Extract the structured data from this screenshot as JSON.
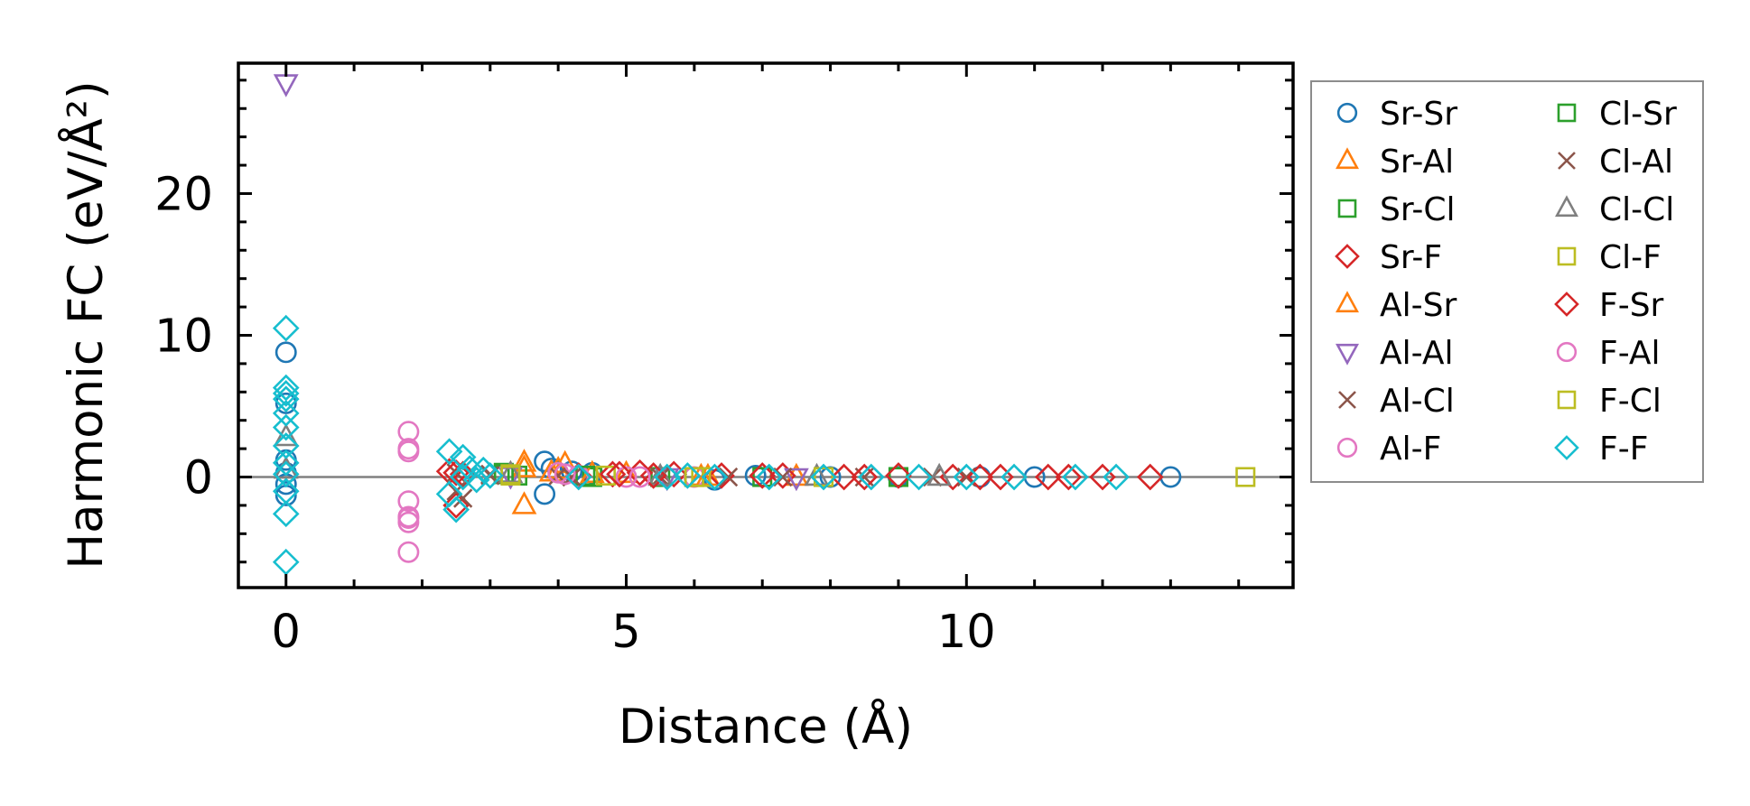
{
  "chart_data": {
    "type": "scatter",
    "title": "",
    "xlabel": "Distance (Å)",
    "ylabel": "Harmonic FC (eV/Å²)",
    "xlim": [
      -0.7,
      14.8
    ],
    "ylim": [
      -7.8,
      29.2
    ],
    "xticks": [
      0,
      5,
      10
    ],
    "yticks": [
      0,
      10,
      20
    ],
    "grid": false,
    "reference_line_y": 0,
    "legend_position": "outside-right",
    "series": [
      {
        "name": "Sr-Sr",
        "marker": "circle",
        "color": "#1f77b4",
        "points": [
          [
            0,
            8.8
          ],
          [
            0,
            5.2
          ],
          [
            0,
            1.2
          ],
          [
            0,
            0.3
          ],
          [
            0,
            -0.5
          ],
          [
            0,
            -1.3
          ],
          [
            3.8,
            1.1
          ],
          [
            3.8,
            -1.2
          ],
          [
            3.9,
            0.6
          ],
          [
            4.2,
            0.4
          ],
          [
            4.5,
            0.3
          ],
          [
            6.3,
            -0.2
          ],
          [
            6.9,
            0.1
          ],
          [
            8.0,
            0.0
          ],
          [
            9.0,
            0.0
          ],
          [
            10.2,
            0.0
          ],
          [
            11.0,
            0.0
          ],
          [
            13.0,
            0.0
          ]
        ]
      },
      {
        "name": "Sr-Al",
        "marker": "triangle-up",
        "color": "#ff7f0e",
        "points": [
          [
            3.5,
            -2.0
          ],
          [
            3.5,
            1.0
          ],
          [
            4.0,
            0.5
          ],
          [
            4.1,
            0.9
          ],
          [
            5.0,
            0.2
          ],
          [
            6.2,
            0.0
          ],
          [
            7.5,
            0.0
          ]
        ]
      },
      {
        "name": "Sr-Cl",
        "marker": "square",
        "color": "#2ca02c",
        "points": [
          [
            3.2,
            0.3
          ],
          [
            3.4,
            0.1
          ],
          [
            4.5,
            0.0
          ],
          [
            5.5,
            0.0
          ],
          [
            7.0,
            0.0
          ],
          [
            9.0,
            0.0
          ]
        ]
      },
      {
        "name": "Sr-F",
        "marker": "diamond",
        "color": "#d62728",
        "points": [
          [
            2.4,
            0.4
          ],
          [
            2.5,
            -2.0
          ],
          [
            2.6,
            0.2
          ],
          [
            4.3,
            0.1
          ],
          [
            4.8,
            0.2
          ],
          [
            5.2,
            0.3
          ],
          [
            5.7,
            0.2
          ],
          [
            6.4,
            0.1
          ],
          [
            7.3,
            0.1
          ],
          [
            8.2,
            0.0
          ],
          [
            9.0,
            0.1
          ],
          [
            9.8,
            0.0
          ],
          [
            10.5,
            0.0
          ],
          [
            11.2,
            0.0
          ],
          [
            12.0,
            0.0
          ],
          [
            12.7,
            0.0
          ]
        ]
      },
      {
        "name": "Al-Sr",
        "marker": "triangle-up",
        "color": "#ff7f0e",
        "points": [
          [
            3.5,
            0.6
          ],
          [
            3.9,
            0.3
          ],
          [
            4.5,
            0.2
          ],
          [
            6.1,
            0.0
          ]
        ]
      },
      {
        "name": "Al-Al",
        "marker": "triangle-down",
        "color": "#9467bd",
        "points": [
          [
            0,
            27.8
          ],
          [
            3.3,
            0.1
          ],
          [
            5.6,
            0.0
          ],
          [
            7.5,
            0.0
          ]
        ]
      },
      {
        "name": "Al-Cl",
        "marker": "x",
        "color": "#8c564b",
        "points": [
          [
            2.6,
            -1.5
          ],
          [
            2.5,
            0.3
          ],
          [
            3.0,
            0.2
          ],
          [
            4.0,
            0.1
          ],
          [
            5.5,
            0.0
          ],
          [
            7.3,
            0.0
          ],
          [
            9.5,
            0.0
          ]
        ]
      },
      {
        "name": "Al-F",
        "marker": "circle",
        "color": "#e377c2",
        "points": [
          [
            1.8,
            3.2
          ],
          [
            1.8,
            1.8
          ],
          [
            1.8,
            -1.7
          ],
          [
            1.8,
            -2.8
          ],
          [
            1.8,
            -3.2
          ],
          [
            1.8,
            -5.3
          ],
          [
            4.0,
            0.3
          ],
          [
            4.3,
            0.1
          ],
          [
            5.0,
            0.0
          ],
          [
            6.0,
            0.0
          ]
        ]
      },
      {
        "name": "Cl-Sr",
        "marker": "square",
        "color": "#2ca02c",
        "points": [
          [
            3.2,
            0.2
          ],
          [
            4.4,
            0.1
          ],
          [
            6.0,
            0.0
          ]
        ]
      },
      {
        "name": "Cl-Al",
        "marker": "x",
        "color": "#8c564b",
        "points": [
          [
            2.5,
            -1.0
          ],
          [
            3.0,
            0.1
          ],
          [
            4.2,
            0.0
          ],
          [
            6.5,
            0.0
          ],
          [
            8.5,
            0.0
          ],
          [
            10.0,
            0.0
          ]
        ]
      },
      {
        "name": "Cl-Cl",
        "marker": "triangle-up",
        "color": "#7f7f7f",
        "points": [
          [
            0,
            2.8
          ],
          [
            0,
            0.5
          ],
          [
            3.3,
            0.2
          ],
          [
            5.5,
            0.0
          ],
          [
            7.8,
            0.0
          ],
          [
            9.6,
            0.0
          ]
        ]
      },
      {
        "name": "Cl-F",
        "marker": "square",
        "color": "#bcbd22",
        "points": [
          [
            3.3,
            0.1
          ],
          [
            4.7,
            0.1
          ],
          [
            6.1,
            0.0
          ],
          [
            7.9,
            0.0
          ]
        ]
      },
      {
        "name": "F-Sr",
        "marker": "diamond",
        "color": "#d62728",
        "points": [
          [
            2.5,
            0.3
          ],
          [
            4.9,
            0.2
          ],
          [
            5.4,
            0.1
          ],
          [
            7.0,
            0.1
          ],
          [
            8.5,
            0.0
          ],
          [
            10.2,
            0.0
          ],
          [
            11.5,
            0.0
          ]
        ]
      },
      {
        "name": "F-Al",
        "marker": "circle",
        "color": "#e377c2",
        "points": [
          [
            1.8,
            2.0
          ],
          [
            1.8,
            -2.9
          ],
          [
            4.1,
            0.2
          ],
          [
            5.2,
            0.0
          ]
        ]
      },
      {
        "name": "F-Cl",
        "marker": "square",
        "color": "#bcbd22",
        "points": [
          [
            3.3,
            0.2
          ],
          [
            6.0,
            0.0
          ],
          [
            14.1,
            0.0
          ]
        ]
      },
      {
        "name": "F-F",
        "marker": "diamond",
        "color": "#17becf",
        "points": [
          [
            0,
            10.5
          ],
          [
            0,
            6.3
          ],
          [
            0,
            5.9
          ],
          [
            0,
            5.5
          ],
          [
            0,
            4.5
          ],
          [
            0,
            3.5
          ],
          [
            0,
            2.2
          ],
          [
            0,
            1.0
          ],
          [
            0,
            0.2
          ],
          [
            0,
            -1.0
          ],
          [
            0,
            -2.6
          ],
          [
            0,
            -6.0
          ],
          [
            2.4,
            1.8
          ],
          [
            2.4,
            -1.2
          ],
          [
            2.5,
            -2.3
          ],
          [
            2.6,
            1.4
          ],
          [
            2.6,
            0.0
          ],
          [
            2.7,
            0.6
          ],
          [
            2.8,
            -0.2
          ],
          [
            2.9,
            0.5
          ],
          [
            3.0,
            0.1
          ],
          [
            4.3,
            0.0
          ],
          [
            5.6,
            0.0
          ],
          [
            5.9,
            0.1
          ],
          [
            6.3,
            0.0
          ],
          [
            7.1,
            0.0
          ],
          [
            7.9,
            0.0
          ],
          [
            8.6,
            0.0
          ],
          [
            9.3,
            0.0
          ],
          [
            10.0,
            0.0
          ],
          [
            10.7,
            0.0
          ],
          [
            11.6,
            0.0
          ],
          [
            12.2,
            0.0
          ]
        ]
      }
    ]
  }
}
